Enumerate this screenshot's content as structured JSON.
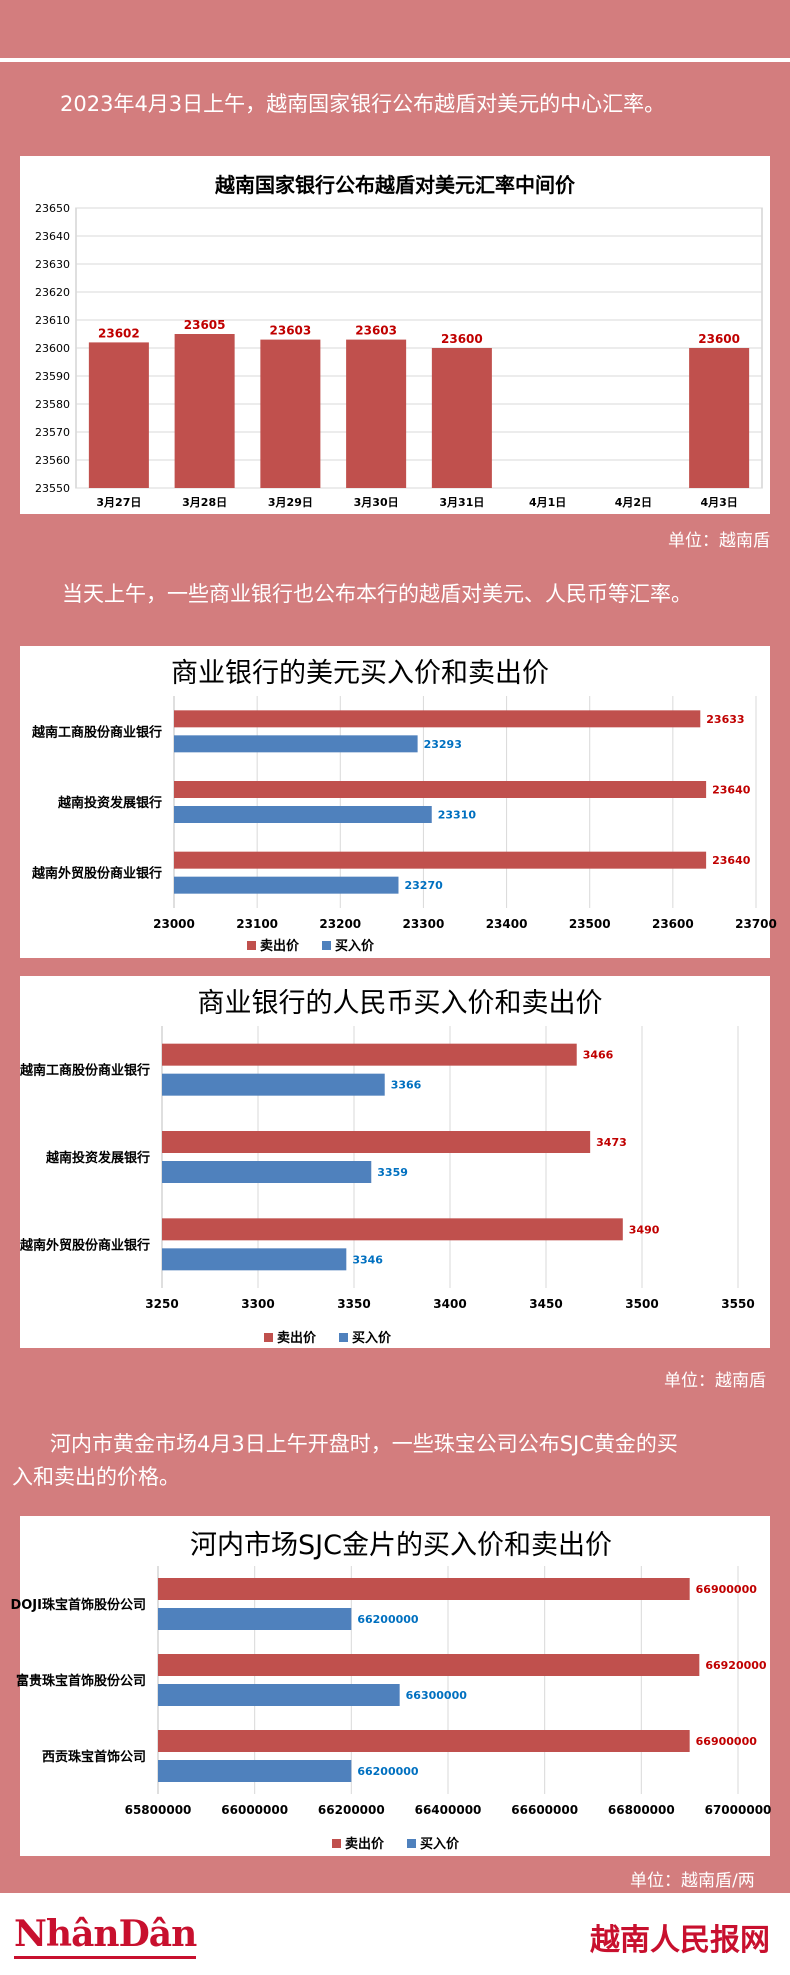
{
  "intro1": "2023年4月3日上午，越南国家银行公布越盾对美元的中心汇率。",
  "intro2": "当天上午，一些商业银行也公布本行的越盾对美元、人民币等汇率。",
  "intro3_line1": "河内市黄金市场4月3日上午开盘时，一些珠宝公司公布SJC黄金的买",
  "intro3_line2": "入和卖出的价格。",
  "unit1": "单位：越南盾",
  "unit2": "单位：越南盾",
  "unit3": "单位：越南盾/两",
  "footer": {
    "logo_left": "NhânDân",
    "logo_right": "越南人民报网"
  },
  "colors": {
    "sell": "#c0504d",
    "buy": "#4f81bd",
    "sell_label": "#c00000",
    "buy_label": "#0070c0"
  },
  "chart_data": [
    {
      "type": "bar",
      "title": "越南国家银行公布越盾对美元汇率中间价",
      "categories": [
        "3月27日",
        "3月28日",
        "3月29日",
        "3月30日",
        "3月31日",
        "4月1日",
        "4月2日",
        "4月3日"
      ],
      "values": [
        23602,
        23605,
        23603,
        23603,
        23600,
        null,
        null,
        23600
      ],
      "ylim": [
        23550,
        23650
      ],
      "yticks": [
        23550,
        23560,
        23570,
        23580,
        23590,
        23600,
        23610,
        23620,
        23630,
        23640,
        23650
      ],
      "grid": true
    },
    {
      "type": "bar",
      "orientation": "horizontal",
      "title": "商业银行的美元买入价和卖出价",
      "categories": [
        "越南工商股份商业银行",
        "越南投资发展银行",
        "越南外贸股份商业银行"
      ],
      "series": [
        {
          "name": "卖出价",
          "values": [
            23633,
            23640,
            23640
          ]
        },
        {
          "name": "买入价",
          "values": [
            23293,
            23310,
            23270
          ]
        }
      ],
      "xlim": [
        23000,
        23700
      ],
      "xticks": [
        23000,
        23100,
        23200,
        23300,
        23400,
        23500,
        23600,
        23700
      ],
      "legend": "bottom",
      "grid": true
    },
    {
      "type": "bar",
      "orientation": "horizontal",
      "title": "商业银行的人民币买入价和卖出价",
      "categories": [
        "越南工商股份商业银行",
        "越南投资发展银行",
        "越南外贸股份商业银行"
      ],
      "series": [
        {
          "name": "卖出价",
          "values": [
            3466,
            3473,
            3490
          ]
        },
        {
          "name": "买入价",
          "values": [
            3366,
            3359,
            3346
          ]
        }
      ],
      "xlim": [
        3250,
        3550
      ],
      "xticks": [
        3250,
        3300,
        3350,
        3400,
        3450,
        3500,
        3550
      ],
      "legend": "bottom",
      "grid": true
    },
    {
      "type": "bar",
      "orientation": "horizontal",
      "title": "河内市场SJC金片的买入价和卖出价",
      "categories": [
        "DOJI珠宝首饰股份公司",
        "富贵珠宝首饰股份公司",
        "西贡珠宝首饰公司"
      ],
      "series": [
        {
          "name": "卖出价",
          "values": [
            66900000,
            66920000,
            66900000
          ]
        },
        {
          "name": "买入价",
          "values": [
            66200000,
            66300000,
            66200000
          ]
        }
      ],
      "xlim": [
        65800000,
        67000000
      ],
      "xticks": [
        65800000,
        66000000,
        66200000,
        66400000,
        66600000,
        66800000,
        67000000
      ],
      "legend": "bottom",
      "grid": true
    }
  ]
}
